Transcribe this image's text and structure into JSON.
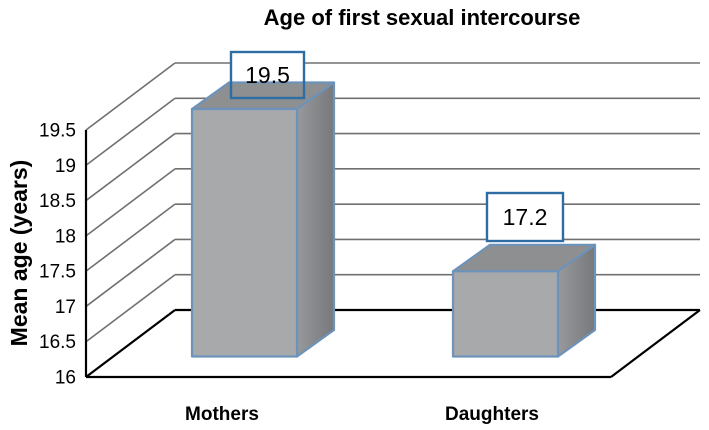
{
  "page": {
    "background": "#ffffff"
  },
  "chart_data": {
    "type": "bar",
    "projection": "3d",
    "title": "Age of first sexual intercourse",
    "xlabel": "",
    "ylabel": "Mean age (years)",
    "categories": [
      "Mothers",
      "Daughters"
    ],
    "values": [
      19.5,
      17.2
    ],
    "data_labels": [
      "19.5",
      "17.2"
    ],
    "ylim": [
      16,
      19.5
    ],
    "ytick_step": 0.5,
    "ytick_labels": [
      "16",
      "16.5",
      "17",
      "17.5",
      "18",
      "18.5",
      "19",
      "19.5"
    ],
    "grid": true,
    "legend": false,
    "colors": {
      "bar_front": "#a8a9ab",
      "bar_top": "#8d8f91",
      "bar_side_light": "#97999c",
      "bar_side_dark": "#76787b",
      "bar_edge": "#6d93bb",
      "label_box_border": "#2e6da4",
      "label_box_fill": "#ffffff",
      "gridline": "#707070",
      "axis_line": "#000000",
      "text": "#000000"
    }
  }
}
